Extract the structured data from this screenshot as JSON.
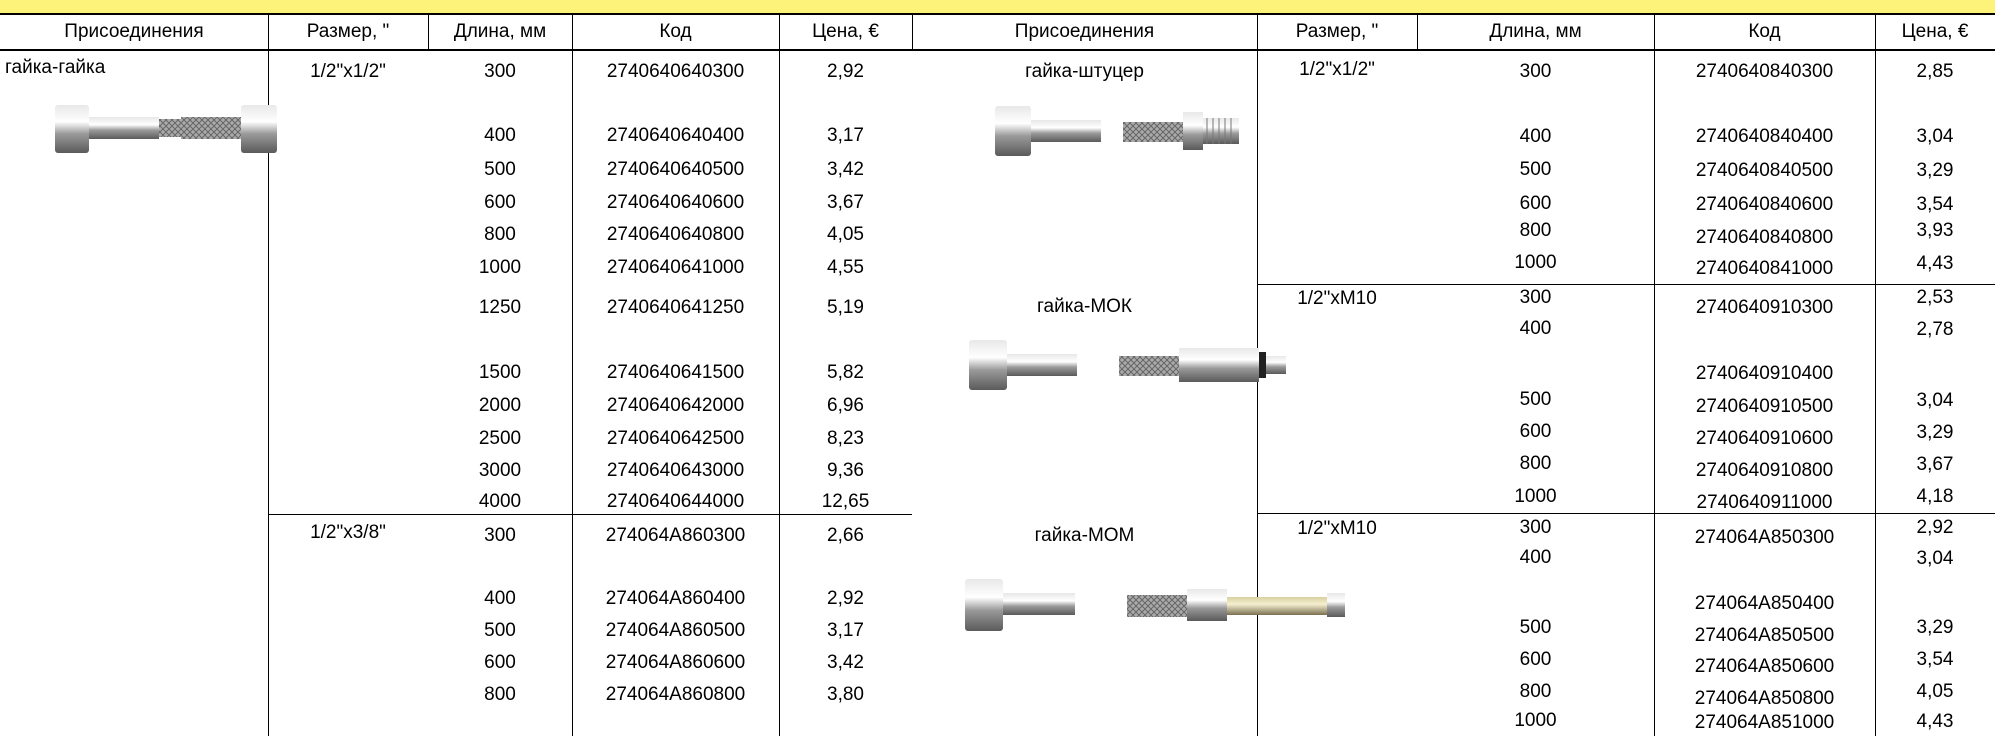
{
  "headers": [
    "Присоединения",
    "Размер, \"",
    "Длина, мм",
    "Код",
    "Цена, €",
    "Присоединения",
    "Размер, \"",
    "Длина, мм",
    "Код",
    "Цена, €"
  ],
  "left": {
    "group1": {
      "connection": "гайка-гайка",
      "size": "1/2\"x1/2\"",
      "rows": [
        {
          "len": "300",
          "code": "2740640640300",
          "price": "2,92"
        },
        {
          "len": "400",
          "code": "2740640640400",
          "price": "3,17"
        },
        {
          "len": "500",
          "code": "2740640640500",
          "price": "3,42"
        },
        {
          "len": "600",
          "code": "2740640640600",
          "price": "3,67"
        },
        {
          "len": "800",
          "code": "2740640640800",
          "price": "4,05"
        },
        {
          "len": "1000",
          "code": "2740640641000",
          "price": "4,55"
        },
        {
          "len": "1250",
          "code": "2740640641250",
          "price": "5,19"
        },
        {
          "len": "1500",
          "code": "2740640641500",
          "price": "5,82"
        },
        {
          "len": "2000",
          "code": "2740640642000",
          "price": "6,96"
        },
        {
          "len": "2500",
          "code": "2740640642500",
          "price": "8,23"
        },
        {
          "len": "3000",
          "code": "2740640643000",
          "price": "9,36"
        },
        {
          "len": "4000",
          "code": "2740640644000",
          "price": "12,65"
        }
      ]
    },
    "group2": {
      "size": "1/2\"x3/8\"",
      "rows": [
        {
          "len": "300",
          "code": "274064A860300",
          "price": "2,66"
        },
        {
          "len": "400",
          "code": "274064A860400",
          "price": "2,92"
        },
        {
          "len": "500",
          "code": "274064A860500",
          "price": "3,17"
        },
        {
          "len": "600",
          "code": "274064A860600",
          "price": "3,42"
        },
        {
          "len": "800",
          "code": "274064A860800",
          "price": "3,80"
        }
      ]
    }
  },
  "right": {
    "group1": {
      "connection": "гайка-штуцер",
      "size": "1/2\"x1/2\"",
      "rows": [
        {
          "len": "300",
          "code": "2740640840300",
          "price": "2,85"
        },
        {
          "len": "400",
          "code": "2740640840400",
          "price": "3,04"
        },
        {
          "len": "500",
          "code": "2740640840500",
          "price": "3,29"
        },
        {
          "len": "600",
          "code": "2740640840600",
          "price": "3,54"
        },
        {
          "len": "800",
          "code": "2740640840800",
          "price": "3,93"
        },
        {
          "len": "1000",
          "code": "2740640841000",
          "price": "4,43"
        }
      ]
    },
    "group2": {
      "connection": "гайка-МОК",
      "size": "1/2\"xM10",
      "lens": [
        "300",
        "400",
        "500",
        "600",
        "800",
        "1000"
      ],
      "codes": [
        "2740640910300",
        "2740640910400",
        "2740640910500",
        "2740640910600",
        "2740640910800",
        "2740640911000"
      ],
      "prices": [
        "2,53",
        "2,78",
        "3,04",
        "3,29",
        "3,67",
        "4,18"
      ]
    },
    "group3": {
      "connection": "гайка-МОМ",
      "size": "1/2\"xM10",
      "lens": [
        "300",
        "400",
        "500",
        "600",
        "800",
        "1000"
      ],
      "codes": [
        "274064A850300",
        "274064A850400",
        "274064A850500",
        "274064A850600",
        "274064A850800",
        "274064A851000"
      ],
      "prices": [
        "2,92",
        "3,04",
        "3,29",
        "3,54",
        "4,05",
        "4,43"
      ]
    }
  },
  "colors": {
    "header_band": "#fdf37a"
  },
  "pictures": [
    "hose-nut-nut-image",
    "hose-nut-fitting-image",
    "hose-nut-mok-image",
    "hose-nut-mom-image"
  ]
}
